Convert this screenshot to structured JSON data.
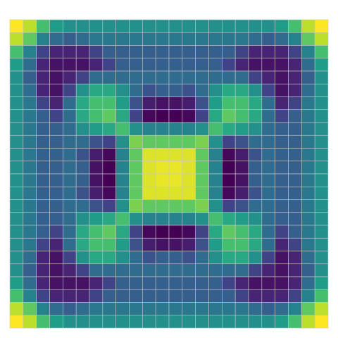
{
  "chart_data": {
    "type": "heatmap",
    "colormap": "viridis",
    "clim": [
      0,
      1
    ],
    "cell_edge_color": "#c8c8c8",
    "values": [
      [
        1,
        0.9,
        0.7,
        0.55,
        0.5,
        0.5,
        0.5,
        0.5,
        0.5,
        0.5,
        0.5,
        0.5,
        0.5,
        0.5,
        0.5,
        0.5,
        0.5,
        0.5,
        0.5,
        0.5,
        0.55,
        0.7,
        0.9,
        1
      ],
      [
        0.9,
        0.75,
        0.45,
        0.35,
        0.3,
        0.35,
        0.4,
        0.4,
        0.4,
        0.4,
        0.4,
        0.4,
        0.4,
        0.4,
        0.4,
        0.4,
        0.4,
        0.4,
        0.35,
        0.3,
        0.35,
        0.45,
        0.75,
        0.9
      ],
      [
        0.7,
        0.45,
        0.2,
        0.1,
        0.1,
        0.1,
        0.2,
        0.3,
        0.3,
        0.3,
        0.3,
        0.3,
        0.3,
        0.3,
        0.3,
        0.3,
        0.3,
        0.2,
        0.1,
        0.1,
        0.1,
        0.2,
        0.45,
        0.7
      ],
      [
        0.55,
        0.35,
        0.1,
        0.05,
        0.05,
        0.05,
        0.1,
        0.2,
        0.3,
        0.3,
        0.3,
        0.3,
        0.3,
        0.3,
        0.3,
        0.3,
        0.2,
        0.1,
        0.05,
        0.05,
        0.05,
        0.1,
        0.35,
        0.55
      ],
      [
        0.5,
        0.3,
        0.1,
        0.05,
        0.1,
        0.2,
        0.35,
        0.35,
        0.35,
        0.35,
        0.35,
        0.35,
        0.35,
        0.35,
        0.35,
        0.35,
        0.35,
        0.35,
        0.2,
        0.1,
        0.05,
        0.1,
        0.3,
        0.5
      ],
      [
        0.5,
        0.35,
        0.1,
        0.05,
        0.2,
        0.5,
        0.6,
        0.6,
        0.5,
        0.35,
        0.25,
        0.3,
        0.3,
        0.25,
        0.35,
        0.5,
        0.6,
        0.6,
        0.5,
        0.2,
        0.05,
        0.1,
        0.35,
        0.5
      ],
      [
        0.5,
        0.4,
        0.2,
        0.1,
        0.35,
        0.6,
        0.7,
        0.7,
        0.55,
        0.25,
        0.08,
        0.05,
        0.05,
        0.08,
        0.25,
        0.55,
        0.7,
        0.7,
        0.6,
        0.35,
        0.1,
        0.2,
        0.4,
        0.5
      ],
      [
        0.5,
        0.4,
        0.3,
        0.2,
        0.35,
        0.6,
        0.7,
        0.75,
        0.6,
        0.2,
        0.02,
        0,
        0,
        0.02,
        0.2,
        0.6,
        0.75,
        0.7,
        0.6,
        0.35,
        0.2,
        0.3,
        0.4,
        0.5
      ],
      [
        0.5,
        0.4,
        0.3,
        0.3,
        0.35,
        0.5,
        0.55,
        0.6,
        0.7,
        0.5,
        0.45,
        0.45,
        0.45,
        0.45,
        0.5,
        0.7,
        0.6,
        0.55,
        0.5,
        0.35,
        0.3,
        0.3,
        0.4,
        0.5
      ],
      [
        0.5,
        0.4,
        0.3,
        0.3,
        0.35,
        0.35,
        0.25,
        0.2,
        0.5,
        0.8,
        0.75,
        0.75,
        0.75,
        0.75,
        0.8,
        0.5,
        0.2,
        0.25,
        0.35,
        0.35,
        0.3,
        0.3,
        0.4,
        0.5
      ],
      [
        0.5,
        0.4,
        0.3,
        0.3,
        0.35,
        0.25,
        0.08,
        0.02,
        0.45,
        0.75,
        0.95,
        0.95,
        0.95,
        0.95,
        0.75,
        0.45,
        0.02,
        0.08,
        0.25,
        0.35,
        0.3,
        0.3,
        0.4,
        0.5
      ],
      [
        0.5,
        0.4,
        0.3,
        0.3,
        0.35,
        0.3,
        0.05,
        0,
        0.45,
        0.75,
        0.95,
        0.97,
        0.97,
        0.95,
        0.75,
        0.45,
        0,
        0.05,
        0.3,
        0.35,
        0.3,
        0.3,
        0.4,
        0.5
      ],
      [
        0.5,
        0.4,
        0.3,
        0.3,
        0.35,
        0.3,
        0.05,
        0,
        0.45,
        0.75,
        0.95,
        0.97,
        0.97,
        0.95,
        0.75,
        0.45,
        0,
        0.05,
        0.3,
        0.35,
        0.3,
        0.3,
        0.4,
        0.5
      ],
      [
        0.5,
        0.4,
        0.3,
        0.3,
        0.35,
        0.25,
        0.08,
        0.02,
        0.45,
        0.75,
        0.95,
        0.95,
        0.95,
        0.95,
        0.75,
        0.45,
        0.02,
        0.08,
        0.25,
        0.35,
        0.3,
        0.3,
        0.4,
        0.5
      ],
      [
        0.5,
        0.4,
        0.3,
        0.3,
        0.35,
        0.35,
        0.25,
        0.2,
        0.5,
        0.8,
        0.75,
        0.75,
        0.75,
        0.75,
        0.8,
        0.5,
        0.2,
        0.25,
        0.35,
        0.35,
        0.3,
        0.3,
        0.4,
        0.5
      ],
      [
        0.5,
        0.4,
        0.3,
        0.3,
        0.35,
        0.5,
        0.55,
        0.6,
        0.7,
        0.5,
        0.45,
        0.45,
        0.45,
        0.45,
        0.5,
        0.7,
        0.6,
        0.55,
        0.5,
        0.35,
        0.3,
        0.3,
        0.4,
        0.5
      ],
      [
        0.5,
        0.4,
        0.3,
        0.2,
        0.35,
        0.6,
        0.7,
        0.75,
        0.6,
        0.2,
        0.02,
        0,
        0,
        0.02,
        0.2,
        0.6,
        0.75,
        0.7,
        0.6,
        0.35,
        0.2,
        0.3,
        0.4,
        0.5
      ],
      [
        0.5,
        0.4,
        0.2,
        0.1,
        0.35,
        0.6,
        0.7,
        0.7,
        0.55,
        0.25,
        0.08,
        0.05,
        0.05,
        0.08,
        0.25,
        0.55,
        0.7,
        0.7,
        0.6,
        0.35,
        0.1,
        0.2,
        0.4,
        0.5
      ],
      [
        0.5,
        0.35,
        0.1,
        0.05,
        0.2,
        0.5,
        0.6,
        0.6,
        0.5,
        0.35,
        0.25,
        0.3,
        0.3,
        0.25,
        0.35,
        0.5,
        0.6,
        0.6,
        0.5,
        0.2,
        0.05,
        0.1,
        0.35,
        0.5
      ],
      [
        0.5,
        0.3,
        0.1,
        0.05,
        0.1,
        0.2,
        0.35,
        0.35,
        0.35,
        0.35,
        0.35,
        0.35,
        0.35,
        0.35,
        0.35,
        0.35,
        0.35,
        0.35,
        0.2,
        0.1,
        0.05,
        0.1,
        0.3,
        0.5
      ],
      [
        0.55,
        0.35,
        0.1,
        0.05,
        0.05,
        0.05,
        0.1,
        0.2,
        0.3,
        0.3,
        0.3,
        0.3,
        0.3,
        0.3,
        0.3,
        0.3,
        0.2,
        0.1,
        0.05,
        0.05,
        0.05,
        0.1,
        0.35,
        0.55
      ],
      [
        0.7,
        0.45,
        0.2,
        0.1,
        0.1,
        0.1,
        0.2,
        0.3,
        0.3,
        0.3,
        0.3,
        0.3,
        0.3,
        0.3,
        0.3,
        0.3,
        0.3,
        0.2,
        0.1,
        0.1,
        0.1,
        0.2,
        0.45,
        0.7
      ],
      [
        0.9,
        0.75,
        0.45,
        0.35,
        0.3,
        0.35,
        0.4,
        0.4,
        0.4,
        0.4,
        0.4,
        0.4,
        0.4,
        0.4,
        0.4,
        0.4,
        0.4,
        0.4,
        0.35,
        0.3,
        0.35,
        0.45,
        0.75,
        0.9
      ],
      [
        1,
        0.9,
        0.7,
        0.55,
        0.5,
        0.5,
        0.5,
        0.5,
        0.5,
        0.5,
        0.5,
        0.5,
        0.5,
        0.5,
        0.5,
        0.5,
        0.5,
        0.5,
        0.5,
        0.5,
        0.55,
        0.7,
        0.9,
        1
      ]
    ]
  }
}
